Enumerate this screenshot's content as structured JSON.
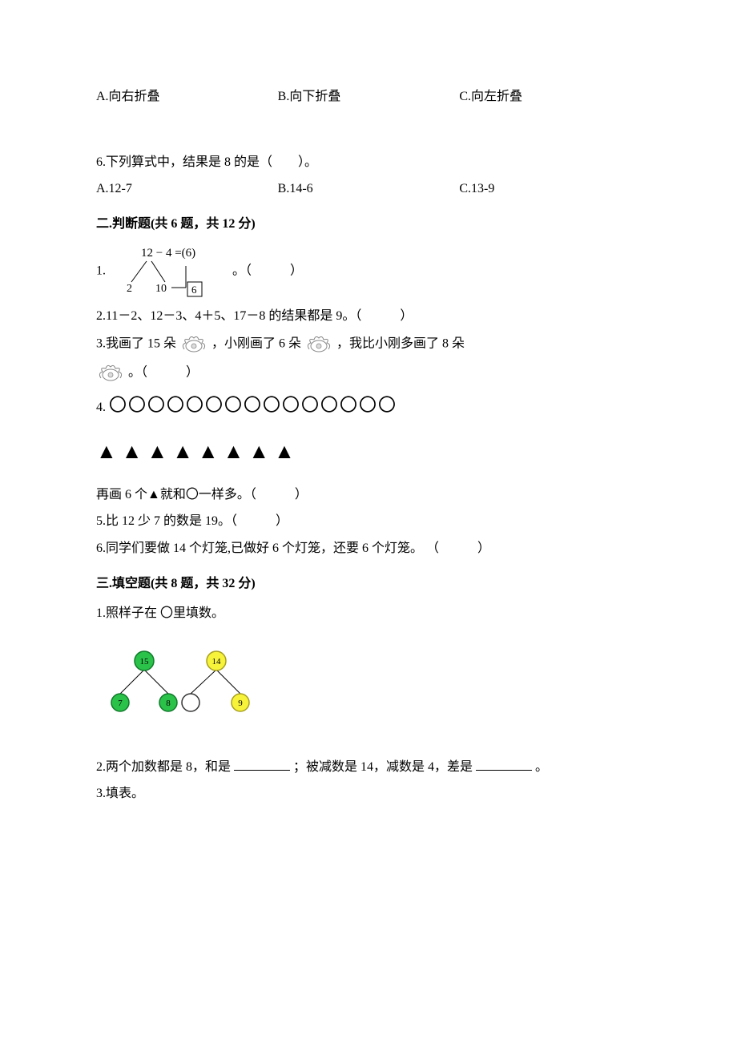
{
  "q5_options": {
    "a": "A.向右折叠",
    "b": "B.向下折叠",
    "c": "C.向左折叠"
  },
  "q6": {
    "stem": "6.下列算式中，结果是 8 的是（　　）。",
    "a": "A.12-7",
    "b": "B.14-6",
    "c": "C.13-9"
  },
  "section2": {
    "title": "二.判断题(共 6 题，共 12 分)",
    "q1": {
      "prefix": "1.",
      "expr_top": "12 − 4 =(6)",
      "split_left": "2",
      "split_right": "10",
      "box_val": "6",
      "tail": "。（　　　）"
    },
    "q2": "2.11－2、12－3、4＋5、17－8 的结果都是 9。（　　　）",
    "q3": {
      "a": "3.我画了 15 朵",
      "b": "，小刚画了 6 朵",
      "c": "，我比小刚多画了 8 朵",
      "tail": "。（　　　）"
    },
    "q4": {
      "circle_count": 15,
      "triangle_count": 8,
      "line": "再画 6 个▲就和〇一样多。（　　　）"
    },
    "q5": "5.比 12 少 7 的数是 19。（　　　）",
    "q6": "6.同学们要做 14 个灯笼,已做好 6 个灯笼，还要 6 个灯笼。 （　　　）"
  },
  "section3": {
    "title": "三.填空题(共 8 题，共 32 分)",
    "q1": {
      "stem": "1.照样子在 〇里填数。",
      "diagram": {
        "node_top_left": "15",
        "node_top_right": "14",
        "node_bottom_1": "7",
        "node_bottom_2": "8",
        "node_bottom_3_empty": true,
        "node_bottom_4": "9",
        "green_fill": "#2bc24a",
        "green_stroke": "#0f7a2a",
        "yellow_fill": "#f7f33a",
        "yellow_stroke": "#a8a020",
        "empty_fill": "#ffffff",
        "empty_stroke": "#333333",
        "line_color": "#000000",
        "text_color": "#000000",
        "font_size": 11
      }
    },
    "q2": {
      "a": "2.两个加数都是 8，和是",
      "b": "；被减数是 14，减数是 4，差是",
      "c": "。"
    },
    "q3": "3.填表。"
  },
  "shapes": {
    "circle_glyph": "〇",
    "triangle_glyph": "▲",
    "circle_font_size": 22,
    "triangle_font_size": 26
  }
}
